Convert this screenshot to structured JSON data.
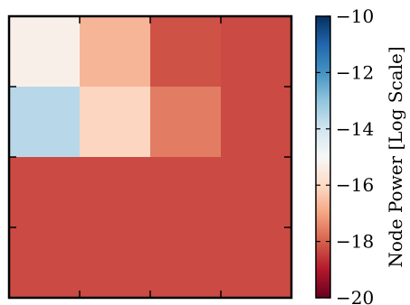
{
  "chart_data": {
    "type": "heatmap",
    "title": "",
    "xlabel": "",
    "ylabel": "",
    "rows": 4,
    "cols": 4,
    "values": [
      [
        -15.3,
        -16.7,
        -18.2,
        -18.3
      ],
      [
        -13.6,
        -16.1,
        -17.6,
        -18.3
      ],
      [
        -18.3,
        -18.3,
        -18.3,
        -18.3
      ],
      [
        -18.3,
        -18.3,
        -18.3,
        -18.3
      ]
    ],
    "colorbar": {
      "label": "Node Power [Log Scale]",
      "range": [
        -20,
        -10
      ],
      "ticks": [
        "−10",
        "−12",
        "−14",
        "−16",
        "−18",
        "−20"
      ],
      "tick_values": [
        -10,
        -12,
        -14,
        -16,
        -18,
        -20
      ],
      "colormap": "RdBu",
      "colors": [
        "#67001f",
        "#b2182b",
        "#d6604d",
        "#f4a582",
        "#fddbc7",
        "#f7f7f7",
        "#d1e5f0",
        "#92c5de",
        "#4393c3",
        "#2166ac",
        "#053061"
      ]
    },
    "grid": false
  }
}
